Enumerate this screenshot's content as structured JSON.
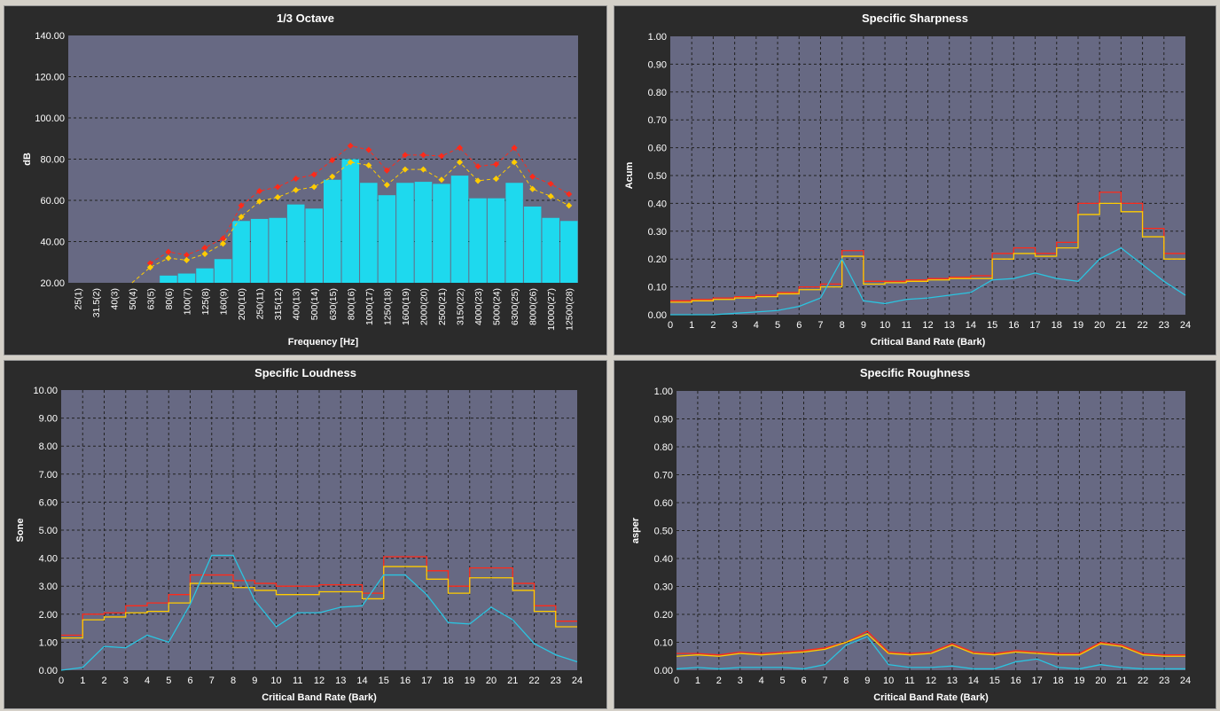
{
  "charts": [
    {
      "type": "bar",
      "title": "1/3 Octave",
      "xlabel": "Frequency [Hz]",
      "ylabel": "dB",
      "ylim": [
        20,
        140
      ],
      "yticks": [
        "20.00",
        "40.00",
        "60.00",
        "80.00",
        "100.00",
        "120.00",
        "140.00"
      ],
      "grid": true,
      "categories": [
        "25(1)",
        "31.5(2)",
        "40(3)",
        "50(4)",
        "63(5)",
        "80(6)",
        "100(7)",
        "125(8)",
        "160(9)",
        "200(10)",
        "250(11)",
        "315(12)",
        "400(13)",
        "500(14)",
        "630(15)",
        "800(16)",
        "1000(17)",
        "1250(18)",
        "1600(19)",
        "2000(20)",
        "2500(21)",
        "3150(22)",
        "4000(23)",
        "5000(24)",
        "6300(25)",
        "8000(26)",
        "10000(27)",
        "12500(28)"
      ],
      "bars": [
        0,
        0,
        0,
        0,
        0,
        23.5,
        24.5,
        27,
        31.5,
        50,
        51,
        51.5,
        58,
        56,
        70,
        80,
        68.5,
        62.5,
        68.5,
        69,
        68,
        72,
        61,
        61,
        68.5,
        57,
        51.5,
        50
      ],
      "series": [
        {
          "color": "#ff2a1a",
          "values": [
            null,
            null,
            null,
            null,
            29.5,
            35,
            33.5,
            37,
            41.5,
            57.5,
            64.5,
            66.5,
            70.5,
            72.5,
            79.5,
            86.5,
            84.5,
            74.5,
            82,
            82,
            81.5,
            85.5,
            76.5,
            77.5,
            85.5,
            71.5,
            68,
            63
          ]
        },
        {
          "color": "#ffcc00",
          "values": [
            null,
            null,
            null,
            17,
            27.5,
            32,
            31,
            34,
            39,
            52,
            59.5,
            61.5,
            65,
            66.5,
            71.5,
            78.5,
            77,
            67.5,
            75,
            75,
            70,
            78.5,
            69.5,
            70.5,
            78.5,
            65.5,
            62,
            57.5
          ]
        }
      ]
    },
    {
      "type": "line",
      "title": "Specific Sharpness",
      "xlabel": "Critical Band Rate (Bark)",
      "ylabel": "Acum",
      "xlim": [
        0,
        24
      ],
      "ylim": [
        0,
        1
      ],
      "xticks": [
        "0",
        "1",
        "2",
        "3",
        "4",
        "5",
        "6",
        "7",
        "8",
        "9",
        "10",
        "11",
        "12",
        "13",
        "14",
        "15",
        "16",
        "17",
        "18",
        "19",
        "20",
        "21",
        "22",
        "23",
        "24"
      ],
      "yticks": [
        "0.00",
        "0.10",
        "0.20",
        "0.30",
        "0.40",
        "0.50",
        "0.60",
        "0.70",
        "0.80",
        "0.90",
        "1.00"
      ],
      "grid": true,
      "series": [
        {
          "color": "#ff2a1a",
          "step": true,
          "values": [
            0.05,
            0.055,
            0.06,
            0.065,
            0.07,
            0.08,
            0.1,
            0.11,
            0.23,
            0.12,
            0.12,
            0.125,
            0.13,
            0.135,
            0.14,
            0.22,
            0.24,
            0.22,
            0.26,
            0.4,
            0.44,
            0.4,
            0.31,
            0.22,
            0.22
          ]
        },
        {
          "color": "#ffcc00",
          "step": true,
          "values": [
            0.045,
            0.05,
            0.055,
            0.06,
            0.065,
            0.075,
            0.09,
            0.1,
            0.21,
            0.11,
            0.115,
            0.12,
            0.125,
            0.13,
            0.13,
            0.2,
            0.22,
            0.21,
            0.24,
            0.36,
            0.4,
            0.37,
            0.28,
            0.2,
            0.2
          ]
        },
        {
          "color": "#2bc4e0",
          "step": false,
          "values": [
            0.0,
            0.0,
            0.0,
            0.005,
            0.01,
            0.015,
            0.03,
            0.06,
            0.2,
            0.05,
            0.04,
            0.055,
            0.06,
            0.07,
            0.08,
            0.125,
            0.13,
            0.15,
            0.13,
            0.12,
            0.2,
            0.24,
            0.18,
            0.12,
            0.07
          ]
        }
      ]
    },
    {
      "type": "line",
      "title": "Specific Loudness",
      "xlabel": "Critical Band Rate (Bark)",
      "ylabel": "Sone",
      "xlim": [
        0,
        24
      ],
      "ylim": [
        0,
        10
      ],
      "xticks": [
        "0",
        "1",
        "2",
        "3",
        "4",
        "5",
        "6",
        "7",
        "8",
        "9",
        "10",
        "11",
        "12",
        "13",
        "14",
        "15",
        "16",
        "17",
        "18",
        "19",
        "20",
        "21",
        "22",
        "23",
        "24"
      ],
      "yticks": [
        "0.00",
        "1.00",
        "2.00",
        "3.00",
        "4.00",
        "5.00",
        "6.00",
        "7.00",
        "8.00",
        "9.00",
        "10.00"
      ],
      "grid": true,
      "series": [
        {
          "color": "#ff2a1a",
          "step": true,
          "values": [
            1.25,
            2.0,
            2.05,
            2.3,
            2.4,
            2.7,
            3.4,
            3.4,
            3.2,
            3.1,
            3.0,
            3.0,
            3.05,
            3.05,
            2.75,
            4.05,
            4.05,
            3.55,
            3.0,
            3.65,
            3.65,
            3.1,
            2.3,
            1.75,
            1.75
          ]
        },
        {
          "color": "#ffcc00",
          "step": true,
          "values": [
            1.15,
            1.8,
            1.9,
            2.05,
            2.1,
            2.4,
            3.1,
            3.1,
            2.95,
            2.85,
            2.7,
            2.7,
            2.8,
            2.8,
            2.55,
            3.7,
            3.7,
            3.25,
            2.75,
            3.3,
            3.3,
            2.85,
            2.1,
            1.55,
            1.55
          ]
        },
        {
          "color": "#2bc4e0",
          "step": false,
          "values": [
            0.0,
            0.1,
            0.85,
            0.8,
            1.25,
            1.0,
            2.35,
            4.1,
            4.1,
            2.5,
            1.55,
            2.05,
            2.05,
            2.25,
            2.3,
            3.4,
            3.4,
            2.7,
            1.7,
            1.65,
            2.25,
            1.8,
            0.95,
            0.55,
            0.3
          ]
        }
      ]
    },
    {
      "type": "line",
      "title": "Specific Roughness",
      "xlabel": "Critical Band Rate (Bark)",
      "ylabel": "asper",
      "xlim": [
        0,
        24
      ],
      "ylim": [
        0,
        1
      ],
      "xticks": [
        "0",
        "1",
        "2",
        "3",
        "4",
        "5",
        "6",
        "7",
        "8",
        "9",
        "10",
        "11",
        "12",
        "13",
        "14",
        "15",
        "16",
        "17",
        "18",
        "19",
        "20",
        "21",
        "22",
        "23",
        "24"
      ],
      "yticks": [
        "0.00",
        "0.10",
        "0.20",
        "0.30",
        "0.40",
        "0.50",
        "0.60",
        "0.70",
        "0.80",
        "0.90",
        "1.00"
      ],
      "grid": true,
      "series": [
        {
          "color": "#ff2a1a",
          "step": false,
          "values": [
            0.06,
            0.06,
            0.055,
            0.065,
            0.06,
            0.065,
            0.07,
            0.08,
            0.1,
            0.14,
            0.065,
            0.06,
            0.065,
            0.095,
            0.065,
            0.06,
            0.07,
            0.065,
            0.06,
            0.06,
            0.1,
            0.09,
            0.06,
            0.055,
            0.055
          ]
        },
        {
          "color": "#ffcc00",
          "step": false,
          "values": [
            0.05,
            0.055,
            0.05,
            0.06,
            0.055,
            0.06,
            0.065,
            0.075,
            0.1,
            0.13,
            0.06,
            0.055,
            0.06,
            0.09,
            0.06,
            0.055,
            0.065,
            0.06,
            0.055,
            0.055,
            0.095,
            0.085,
            0.055,
            0.05,
            0.05
          ]
        },
        {
          "color": "#2bc4e0",
          "step": false,
          "values": [
            0.005,
            0.01,
            0.005,
            0.01,
            0.01,
            0.01,
            0.005,
            0.02,
            0.09,
            0.12,
            0.02,
            0.01,
            0.01,
            0.015,
            0.005,
            0.005,
            0.03,
            0.04,
            0.01,
            0.005,
            0.02,
            0.01,
            0.005,
            0.005,
            0.005
          ]
        }
      ]
    }
  ]
}
